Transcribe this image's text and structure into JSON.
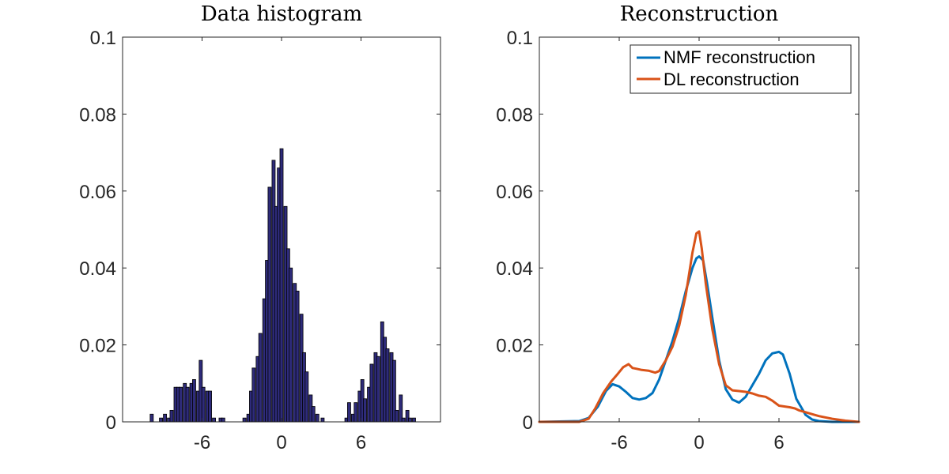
{
  "chart_data": [
    {
      "type": "bar",
      "title": "Data histogram",
      "xlabel": "",
      "ylabel": "",
      "xlim": [
        -12,
        12
      ],
      "ylim": [
        0,
        0.1
      ],
      "xticks": [
        -6,
        0,
        6
      ],
      "xtick_labels": [
        "-6",
        "0",
        "6"
      ],
      "yticks": [
        0,
        0.02,
        0.04,
        0.06,
        0.08,
        0.1
      ],
      "ytick_labels": [
        "0",
        "0.02",
        "0.04",
        "0.06",
        "0.08",
        "0.1"
      ],
      "bar_color": "#2e2b7a",
      "edge_color": "#000000",
      "bin_width": 0.24,
      "bins": [
        {
          "x": -9.8,
          "y": 0.002
        },
        {
          "x": -9.1,
          "y": 0.001
        },
        {
          "x": -8.8,
          "y": 0.002
        },
        {
          "x": -8.5,
          "y": 0.001
        },
        {
          "x": -8.3,
          "y": 0.003
        },
        {
          "x": -8.0,
          "y": 0.009
        },
        {
          "x": -7.8,
          "y": 0.009
        },
        {
          "x": -7.6,
          "y": 0.009
        },
        {
          "x": -7.3,
          "y": 0.01
        },
        {
          "x": -7.1,
          "y": 0.009
        },
        {
          "x": -6.8,
          "y": 0.01
        },
        {
          "x": -6.6,
          "y": 0.011
        },
        {
          "x": -6.3,
          "y": 0.008
        },
        {
          "x": -6.1,
          "y": 0.016
        },
        {
          "x": -5.9,
          "y": 0.009
        },
        {
          "x": -5.6,
          "y": 0.008
        },
        {
          "x": -5.4,
          "y": 0.008
        },
        {
          "x": -5.1,
          "y": 0.001
        },
        {
          "x": -4.6,
          "y": 0.001
        },
        {
          "x": -4.4,
          "y": 0.001
        },
        {
          "x": -2.8,
          "y": 0.001
        },
        {
          "x": -2.5,
          "y": 0.002
        },
        {
          "x": -2.3,
          "y": 0.008
        },
        {
          "x": -2.1,
          "y": 0.014
        },
        {
          "x": -1.8,
          "y": 0.017
        },
        {
          "x": -1.6,
          "y": 0.023
        },
        {
          "x": -1.3,
          "y": 0.032
        },
        {
          "x": -1.1,
          "y": 0.042
        },
        {
          "x": -0.9,
          "y": 0.061
        },
        {
          "x": -0.6,
          "y": 0.068
        },
        {
          "x": -0.4,
          "y": 0.056
        },
        {
          "x": -0.2,
          "y": 0.066
        },
        {
          "x": 0.0,
          "y": 0.071
        },
        {
          "x": 0.3,
          "y": 0.056
        },
        {
          "x": 0.5,
          "y": 0.045
        },
        {
          "x": 0.7,
          "y": 0.04
        },
        {
          "x": 1.0,
          "y": 0.036
        },
        {
          "x": 1.2,
          "y": 0.034
        },
        {
          "x": 1.5,
          "y": 0.028
        },
        {
          "x": 1.7,
          "y": 0.018
        },
        {
          "x": 1.9,
          "y": 0.013
        },
        {
          "x": 2.2,
          "y": 0.007
        },
        {
          "x": 2.4,
          "y": 0.004
        },
        {
          "x": 2.7,
          "y": 0.002
        },
        {
          "x": 3.1,
          "y": 0.001
        },
        {
          "x": 4.9,
          "y": 0.001
        },
        {
          "x": 5.1,
          "y": 0.005
        },
        {
          "x": 5.4,
          "y": 0.002
        },
        {
          "x": 5.6,
          "y": 0.005
        },
        {
          "x": 5.9,
          "y": 0.008
        },
        {
          "x": 6.1,
          "y": 0.011
        },
        {
          "x": 6.3,
          "y": 0.006
        },
        {
          "x": 6.6,
          "y": 0.009
        },
        {
          "x": 6.8,
          "y": 0.015
        },
        {
          "x": 7.1,
          "y": 0.018
        },
        {
          "x": 7.3,
          "y": 0.017
        },
        {
          "x": 7.6,
          "y": 0.026
        },
        {
          "x": 7.8,
          "y": 0.022
        },
        {
          "x": 8.0,
          "y": 0.019
        },
        {
          "x": 8.3,
          "y": 0.018
        },
        {
          "x": 8.5,
          "y": 0.016
        },
        {
          "x": 8.7,
          "y": 0.003
        },
        {
          "x": 9.0,
          "y": 0.007
        },
        {
          "x": 9.2,
          "y": 0.001
        },
        {
          "x": 9.5,
          "y": 0.003
        },
        {
          "x": 9.7,
          "y": 0.001
        },
        {
          "x": 10.0,
          "y": 0.001
        }
      ]
    },
    {
      "type": "line",
      "title": "Reconstruction",
      "xlabel": "",
      "ylabel": "",
      "xlim": [
        -12,
        12
      ],
      "ylim": [
        0,
        0.1
      ],
      "xticks": [
        -6,
        0,
        6
      ],
      "xtick_labels": [
        "-6",
        "0",
        "6"
      ],
      "yticks": [
        0,
        0.02,
        0.04,
        0.06,
        0.08,
        0.1
      ],
      "ytick_labels": [
        "0",
        "0.02",
        "0.04",
        "0.06",
        "0.08",
        "0.1"
      ],
      "legend_position": "top-right",
      "series": [
        {
          "name": "NMF reconstruction",
          "color": "#0072bd",
          "x": [
            -12,
            -9,
            -8.3,
            -7.6,
            -7,
            -6.5,
            -6,
            -5.5,
            -5,
            -4.5,
            -4,
            -3.5,
            -3,
            -2.5,
            -2,
            -1.5,
            -1,
            -0.5,
            -0.2,
            0,
            0.3,
            0.6,
            1,
            1.5,
            2,
            2.5,
            3,
            3.5,
            4,
            4.5,
            5,
            5.5,
            6,
            6.3,
            6.8,
            7.3,
            8,
            8.5,
            9,
            10,
            12
          ],
          "y": [
            0,
            0.0002,
            0.001,
            0.004,
            0.008,
            0.0098,
            0.0092,
            0.0078,
            0.0062,
            0.0058,
            0.0062,
            0.0075,
            0.011,
            0.016,
            0.021,
            0.027,
            0.034,
            0.04,
            0.0425,
            0.043,
            0.042,
            0.036,
            0.027,
            0.016,
            0.0085,
            0.0058,
            0.005,
            0.0065,
            0.0095,
            0.0125,
            0.016,
            0.0178,
            0.0182,
            0.0175,
            0.0125,
            0.006,
            0.0018,
            0.0006,
            0.0002,
            0,
            0
          ]
        },
        {
          "name": "DL reconstruction",
          "color": "#d95319",
          "x": [
            -12,
            -9,
            -8.3,
            -7.8,
            -7.2,
            -6.6,
            -6.1,
            -5.7,
            -5.3,
            -5,
            -4.7,
            -4.3,
            -3.8,
            -3.3,
            -3,
            -2.5,
            -2,
            -1.5,
            -1,
            -0.5,
            -0.2,
            0,
            0.2,
            0.5,
            1,
            1.5,
            2,
            2.5,
            3,
            3.5,
            4,
            4.5,
            5,
            5.5,
            6,
            6.4,
            6.8,
            7.2,
            7.5,
            8,
            8.5,
            9,
            10,
            11,
            12
          ],
          "y": [
            0,
            0,
            0.0008,
            0.0035,
            0.0075,
            0.0105,
            0.0125,
            0.0142,
            0.015,
            0.014,
            0.0138,
            0.0135,
            0.0133,
            0.0128,
            0.0132,
            0.016,
            0.0195,
            0.025,
            0.033,
            0.044,
            0.049,
            0.0495,
            0.045,
            0.036,
            0.024,
            0.015,
            0.0095,
            0.0082,
            0.008,
            0.0078,
            0.0074,
            0.0068,
            0.0065,
            0.0055,
            0.0042,
            0.004,
            0.0038,
            0.0035,
            0.003,
            0.0025,
            0.002,
            0.0015,
            0.0008,
            0.0003,
            0
          ]
        }
      ]
    }
  ]
}
